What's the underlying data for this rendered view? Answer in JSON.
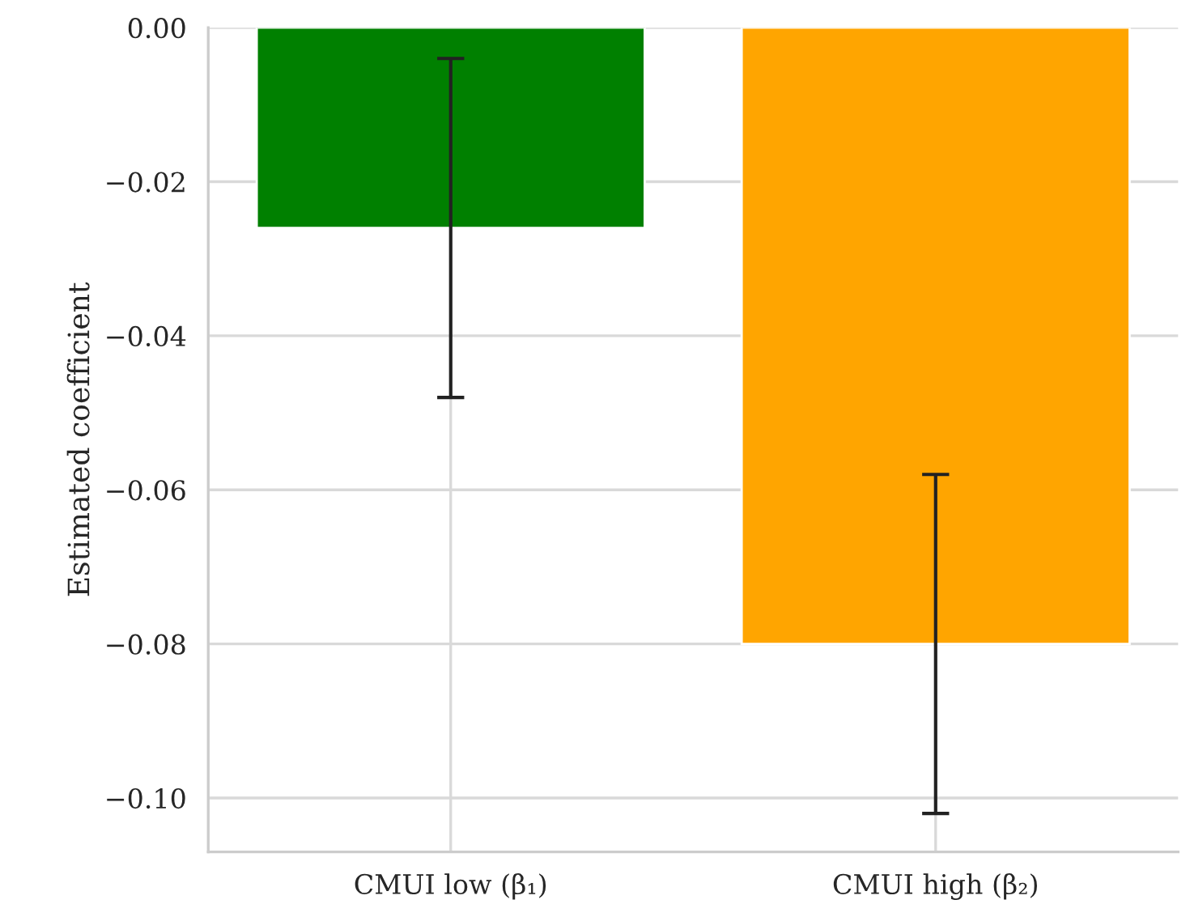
{
  "chart_data": {
    "type": "bar",
    "ylabel": "Estimated coefficient",
    "categories": [
      "CMUI low (β₁)",
      "CMUI high (β₂)"
    ],
    "values": [
      -0.026,
      -0.08
    ],
    "colors": [
      "#008000",
      "#ffa500"
    ],
    "errors": [
      0.022,
      0.022
    ],
    "ylim": [
      -0.107,
      0.0
    ],
    "yticks": [
      {
        "value": -0.1,
        "label": "−0.10"
      },
      {
        "value": -0.08,
        "label": "−0.08"
      },
      {
        "value": -0.06,
        "label": "−0.06"
      },
      {
        "value": -0.04,
        "label": "−0.04"
      },
      {
        "value": -0.02,
        "label": "−0.02"
      },
      {
        "value": 0.0,
        "label": "0.00"
      }
    ],
    "grid": true
  }
}
